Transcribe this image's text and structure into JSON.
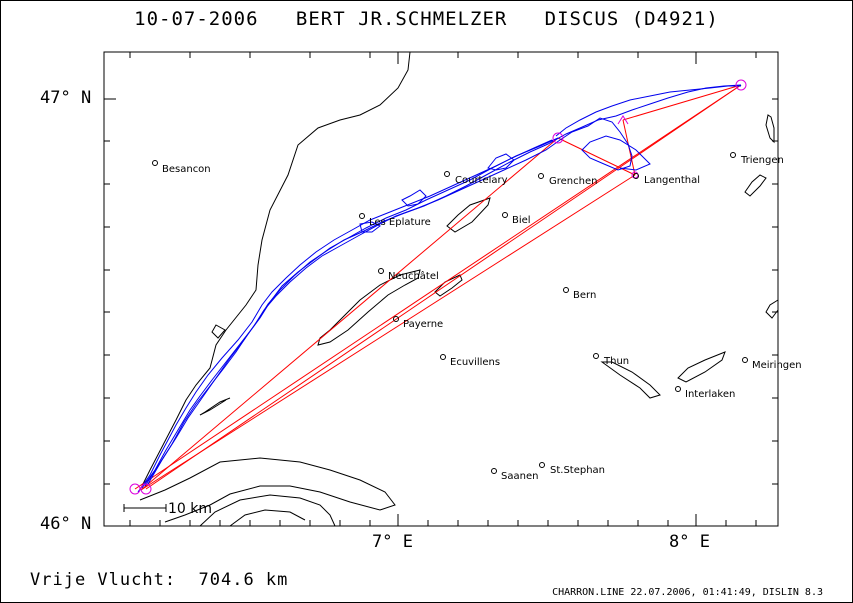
{
  "title": "10-07-2006   BERT JR.SCHMELZER   DISCUS (D4921)",
  "axes": {
    "lat_top": "47° N",
    "lat_bottom": "46° N",
    "lon_left": "7° E",
    "lon_right": "8° E"
  },
  "scale_bar_label": "10 km",
  "towns": [
    {
      "name": "Besancon"
    },
    {
      "name": "Courtelary"
    },
    {
      "name": "Grenchen"
    },
    {
      "name": "Langenthal"
    },
    {
      "name": "Triengen"
    },
    {
      "name": "Les Eplature"
    },
    {
      "name": "Biel"
    },
    {
      "name": "Neuchâtel"
    },
    {
      "name": "Bern"
    },
    {
      "name": "Payerne"
    },
    {
      "name": "Ecuvillens"
    },
    {
      "name": "Thun"
    },
    {
      "name": "Meiringen"
    },
    {
      "name": "Interlaken"
    },
    {
      "name": "Saanen"
    },
    {
      "name": "St.Stephan"
    }
  ],
  "colors": {
    "track": "#0000ee",
    "task": "#ff0000",
    "turnpoint": "#dd00dd",
    "terrain": "#000000"
  },
  "footer_left": "Vrije Vlucht:  704.6 km",
  "footer_right": "CHARRON.LINE 22.07.2006, 01:41:49, DISLIN 8.3"
}
